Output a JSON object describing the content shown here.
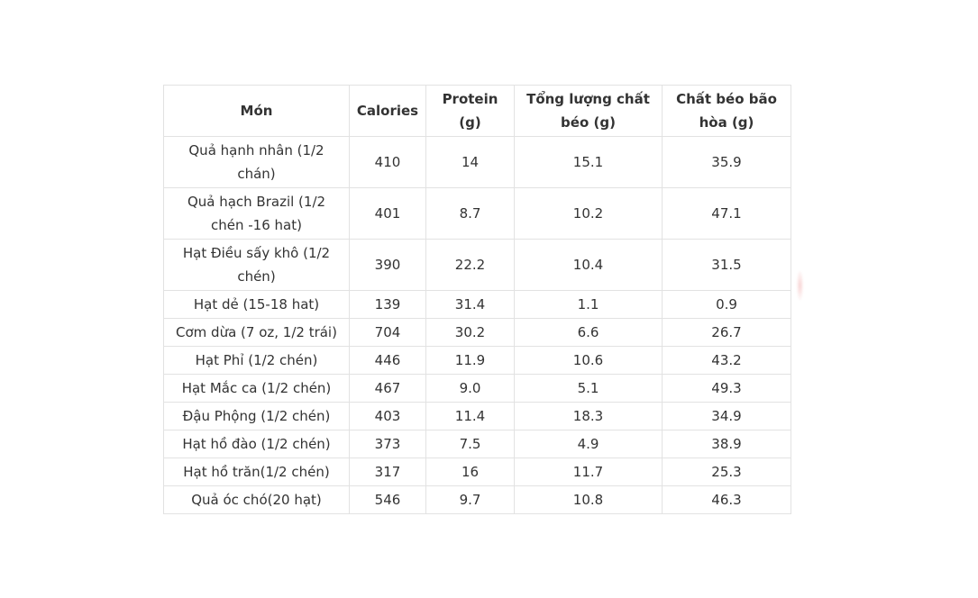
{
  "chart_data": {
    "type": "table",
    "title": "",
    "columns": [
      "Món",
      "Calories",
      "Protein (g)",
      "Tổng lượng chất béo (g)",
      "Chất béo bão hòa (g)"
    ],
    "rows": [
      [
        "Quả hạnh nhân (1/2 chán)",
        "410",
        "14",
        "15.1",
        "35.9"
      ],
      [
        "Quả hạch Brazil (1/2 chén -16 hat)",
        "401",
        "8.7",
        "10.2",
        "47.1"
      ],
      [
        "Hạt Điều sấy khô (1/2 chén)",
        "390",
        "22.2",
        "10.4",
        "31.5"
      ],
      [
        "Hạt dẻ (15-18 hat)",
        "139",
        "31.4",
        "1.1",
        "0.9"
      ],
      [
        "Cơm dừa (7 oz, 1/2 trái)",
        "704",
        "30.2",
        "6.6",
        "26.7"
      ],
      [
        "Hạt Phỉ (1/2 chén)",
        "446",
        "11.9",
        "10.6",
        "43.2"
      ],
      [
        "Hạt Mắc ca (1/2 chén)",
        "467",
        "9.0",
        "5.1",
        "49.3"
      ],
      [
        "Đậu Phộng (1/2 chén)",
        "403",
        "11.4",
        "18.3",
        "34.9"
      ],
      [
        "Hạt hồ đào (1/2 chén)",
        "373",
        "7.5",
        "4.9",
        "38.9"
      ],
      [
        "Hạt hồ trăn(1/2 chén)",
        "317",
        "16",
        "11.7",
        "25.3"
      ],
      [
        "Quả óc chó(20 hạt)",
        "546",
        "9.7",
        "10.8",
        "46.3"
      ]
    ],
    "layout": {
      "grid": "on",
      "header_row": true,
      "cell_alignment": "center"
    }
  },
  "colors": {
    "border": "#e2e2e2",
    "text": "#333333",
    "header_text": "#333333",
    "background": "#ffffff",
    "artifact_pink": "#f0aaaa"
  }
}
